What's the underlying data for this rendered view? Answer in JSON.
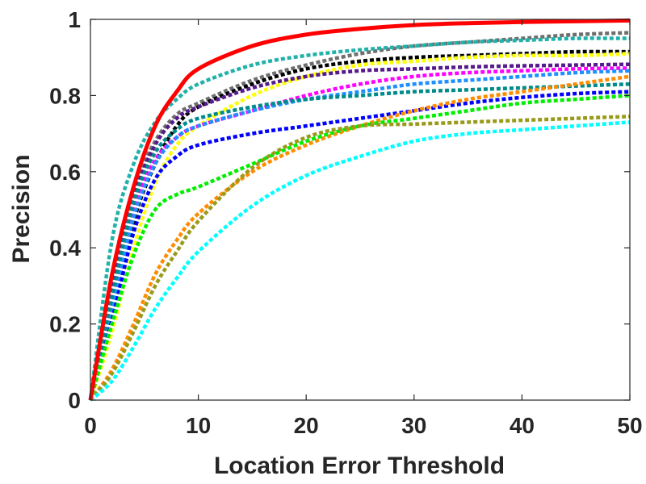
{
  "chart_data": {
    "type": "line",
    "title": "",
    "xlabel": "Location Error Threshold",
    "ylabel": "Precision",
    "xlim": [
      0,
      50
    ],
    "ylim": [
      0,
      1
    ],
    "xticks": [
      0,
      10,
      20,
      30,
      40,
      50
    ],
    "yticks": [
      0,
      0.2,
      0.4,
      0.6,
      0.8,
      1
    ],
    "xtick_labels": [
      "0",
      "10",
      "20",
      "30",
      "40",
      "50"
    ],
    "ytick_labels": [
      "0",
      "0.2",
      "0.4",
      "0.6",
      "0.8",
      "1"
    ],
    "grid": false,
    "legend": "none",
    "x": [
      0,
      2,
      4,
      6,
      8,
      10,
      15,
      20,
      25,
      30,
      35,
      40,
      45,
      50
    ],
    "series": [
      {
        "color": "#6e6e6e",
        "style": "dotted",
        "values": [
          0,
          0.3,
          0.55,
          0.68,
          0.75,
          0.78,
          0.84,
          0.88,
          0.91,
          0.93,
          0.94,
          0.95,
          0.96,
          0.965
        ]
      },
      {
        "color": "#20b2aa",
        "style": "dotted",
        "values": [
          0,
          0.42,
          0.62,
          0.73,
          0.79,
          0.83,
          0.88,
          0.905,
          0.92,
          0.93,
          0.94,
          0.945,
          0.95,
          0.95
        ]
      },
      {
        "color": "#000000",
        "style": "dotted",
        "values": [
          0,
          0.22,
          0.47,
          0.62,
          0.72,
          0.77,
          0.83,
          0.87,
          0.89,
          0.9,
          0.905,
          0.91,
          0.915,
          0.915
        ]
      },
      {
        "color": "#ffff00",
        "style": "dotted",
        "values": [
          0,
          0.18,
          0.4,
          0.57,
          0.67,
          0.72,
          0.8,
          0.85,
          0.88,
          0.89,
          0.9,
          0.905,
          0.905,
          0.91
        ]
      },
      {
        "color": "#551a8b",
        "style": "dotted",
        "values": [
          0,
          0.28,
          0.53,
          0.67,
          0.74,
          0.77,
          0.82,
          0.85,
          0.865,
          0.87,
          0.875,
          0.878,
          0.88,
          0.882
        ]
      },
      {
        "color": "#ff00ff",
        "style": "dotted",
        "values": [
          0,
          0.26,
          0.5,
          0.63,
          0.69,
          0.72,
          0.76,
          0.8,
          0.83,
          0.85,
          0.86,
          0.865,
          0.87,
          0.872
        ]
      },
      {
        "color": "#1e90ff",
        "style": "dotted",
        "values": [
          0,
          0.24,
          0.48,
          0.62,
          0.69,
          0.72,
          0.76,
          0.79,
          0.81,
          0.83,
          0.84,
          0.85,
          0.86,
          0.865
        ]
      },
      {
        "color": "#008b8b",
        "style": "dotted",
        "values": [
          0,
          0.27,
          0.52,
          0.65,
          0.71,
          0.74,
          0.77,
          0.79,
          0.8,
          0.81,
          0.815,
          0.82,
          0.825,
          0.83
        ]
      },
      {
        "color": "#0000ff",
        "style": "dotted",
        "values": [
          0,
          0.21,
          0.44,
          0.58,
          0.64,
          0.67,
          0.7,
          0.72,
          0.74,
          0.76,
          0.78,
          0.795,
          0.805,
          0.81
        ]
      },
      {
        "color": "#ff8c00",
        "style": "dotted",
        "values": [
          0,
          0.08,
          0.2,
          0.33,
          0.42,
          0.49,
          0.6,
          0.67,
          0.72,
          0.76,
          0.79,
          0.81,
          0.83,
          0.85
        ]
      },
      {
        "color": "#00ee00",
        "style": "dotted",
        "values": [
          0,
          0.2,
          0.38,
          0.5,
          0.54,
          0.56,
          0.62,
          0.68,
          0.72,
          0.74,
          0.76,
          0.78,
          0.79,
          0.8
        ]
      },
      {
        "color": "#9a9a1a",
        "style": "dotted",
        "values": [
          0,
          0.07,
          0.18,
          0.3,
          0.39,
          0.47,
          0.61,
          0.69,
          0.72,
          0.725,
          0.73,
          0.735,
          0.74,
          0.745
        ]
      },
      {
        "color": "#00ffff",
        "style": "dotted",
        "values": [
          0,
          0.05,
          0.14,
          0.24,
          0.32,
          0.39,
          0.51,
          0.59,
          0.64,
          0.68,
          0.7,
          0.71,
          0.72,
          0.73
        ]
      },
      {
        "color": "#ff0000",
        "style": "solid",
        "values": [
          0,
          0.33,
          0.56,
          0.72,
          0.81,
          0.87,
          0.93,
          0.96,
          0.975,
          0.985,
          0.99,
          0.993,
          0.995,
          0.997
        ]
      }
    ]
  }
}
